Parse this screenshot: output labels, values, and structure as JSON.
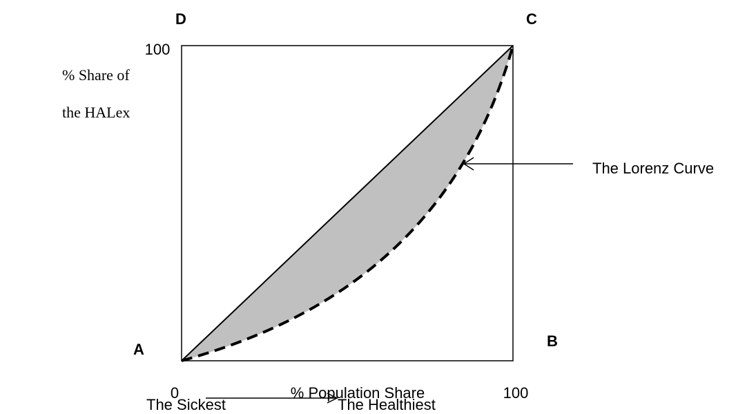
{
  "corners": {
    "a": "A",
    "b": "B",
    "c": "C",
    "d": "D"
  },
  "y_axis": {
    "label_line1": "% Share of",
    "label_line2": "the HALex",
    "max_label": "100"
  },
  "x_axis": {
    "label": "% Population Share",
    "min_label": "0",
    "max_label": "100",
    "left_end": "The Sickest",
    "right_end": "The Healthiest"
  },
  "annotation": "The Lorenz Curve"
}
